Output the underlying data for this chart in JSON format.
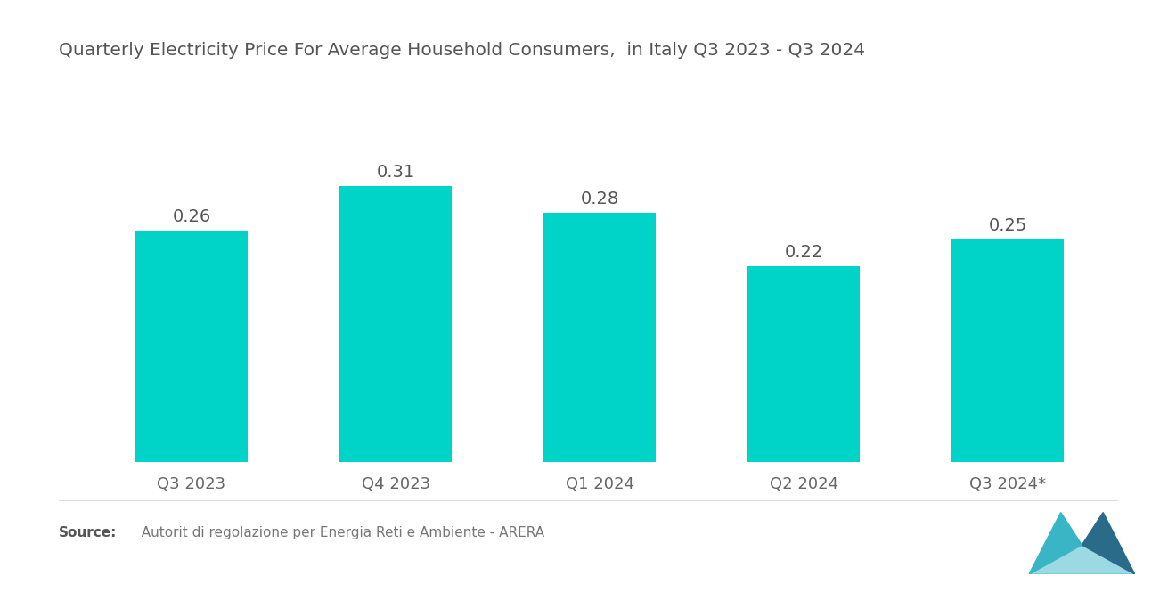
{
  "title": "Quarterly Electricity Price For Average Household Consumers,  in Italy Q3 2023 - Q3 2024",
  "categories": [
    "Q3 2023",
    "Q4 2023",
    "Q1 2024",
    "Q2 2024",
    "Q3 2024*"
  ],
  "values": [
    0.26,
    0.31,
    0.28,
    0.22,
    0.25
  ],
  "bar_color": "#00D4C8",
  "background_color": "#FFFFFF",
  "title_fontsize": 14.5,
  "label_fontsize": 14,
  "tick_fontsize": 13,
  "source_bold": "Source:",
  "source_text": "  Autorit di regolazione per Energia Reti e Ambiente - ARERA",
  "ylim": [
    0,
    0.4
  ]
}
